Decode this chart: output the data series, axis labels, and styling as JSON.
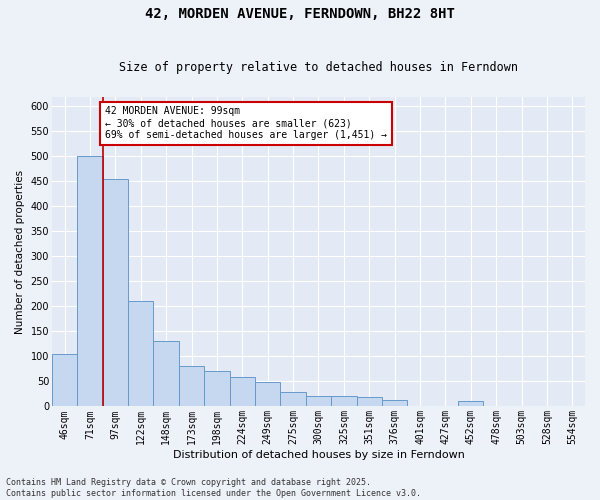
{
  "title": "42, MORDEN AVENUE, FERNDOWN, BH22 8HT",
  "subtitle": "Size of property relative to detached houses in Ferndown",
  "xlabel": "Distribution of detached houses by size in Ferndown",
  "ylabel": "Number of detached properties",
  "categories": [
    "46sqm",
    "71sqm",
    "97sqm",
    "122sqm",
    "148sqm",
    "173sqm",
    "198sqm",
    "224sqm",
    "249sqm",
    "275sqm",
    "300sqm",
    "325sqm",
    "351sqm",
    "376sqm",
    "401sqm",
    "427sqm",
    "452sqm",
    "478sqm",
    "503sqm",
    "528sqm",
    "554sqm"
  ],
  "values": [
    105,
    500,
    455,
    210,
    130,
    80,
    70,
    58,
    48,
    28,
    20,
    20,
    18,
    12,
    0,
    0,
    10,
    0,
    0,
    0,
    0
  ],
  "bar_color": "#c5d8ef",
  "bar_edgecolor": "#6699cc",
  "vline_x": 1.5,
  "vline_color": "#bb0000",
  "annotation_text": "42 MORDEN AVENUE: 99sqm\n← 30% of detached houses are smaller (623)\n69% of semi-detached houses are larger (1,451) →",
  "annotation_box_color": "#ffffff",
  "annotation_box_edgecolor": "#cc0000",
  "ylim": [
    0,
    620
  ],
  "yticks": [
    0,
    50,
    100,
    150,
    200,
    250,
    300,
    350,
    400,
    450,
    500,
    550,
    600
  ],
  "footer": "Contains HM Land Registry data © Crown copyright and database right 2025.\nContains public sector information licensed under the Open Government Licence v3.0.",
  "background_color": "#edf1f8",
  "plot_background_color": "#e4eaf5",
  "grid_color": "#ffffff",
  "title_fontsize": 10,
  "subtitle_fontsize": 8.5,
  "tick_fontsize": 7,
  "ylabel_fontsize": 7.5,
  "xlabel_fontsize": 8,
  "footer_fontsize": 6,
  "ann_fontsize": 7
}
